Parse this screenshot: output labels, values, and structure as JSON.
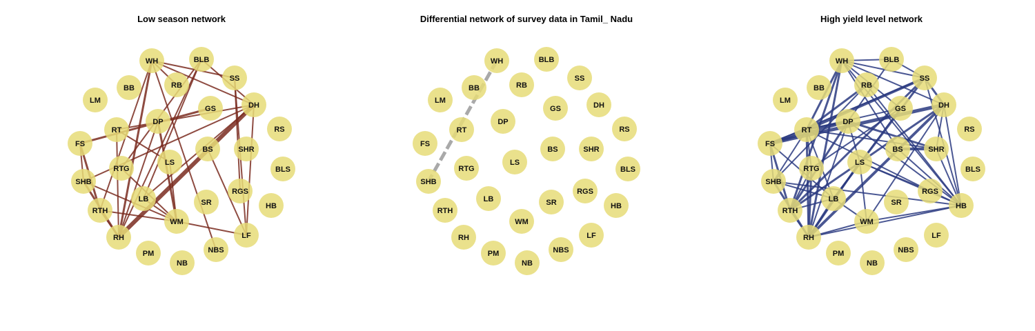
{
  "colors": {
    "background": "#ffffff",
    "node_fill": "#e6dc78",
    "low_season_edge": "#7a2c20",
    "differential_edge": "#9a9a9a",
    "high_yield_edge": "#2a3a80"
  },
  "nodes": [
    "WH",
    "BLB",
    "SS",
    "RB",
    "BB",
    "LM",
    "DH",
    "GS",
    "DP",
    "RT",
    "FS",
    "RS",
    "SHR",
    "BS",
    "LS",
    "RTG",
    "SHB",
    "BLS",
    "RGS",
    "LB",
    "HB",
    "SR",
    "RTH",
    "WM",
    "LF",
    "RH",
    "PM",
    "NBS",
    "NB"
  ],
  "panels": [
    {
      "id": "low-season",
      "title": "Low season network",
      "edge_color": "#7a2c20",
      "edges": [
        {
          "a": "WH",
          "b": "SS",
          "w": 2
        },
        {
          "a": "WH",
          "b": "DH",
          "w": 2
        },
        {
          "a": "WH",
          "b": "RB",
          "w": 2
        },
        {
          "a": "WH",
          "b": "NBS",
          "w": 2
        },
        {
          "a": "WH",
          "b": "RH",
          "w": 3
        },
        {
          "a": "WH",
          "b": "RTH",
          "w": 2
        },
        {
          "a": "BLB",
          "b": "DH",
          "w": 2
        },
        {
          "a": "BLB",
          "b": "RTG",
          "w": 2
        },
        {
          "a": "BLB",
          "b": "LB",
          "w": 2
        },
        {
          "a": "BLB",
          "b": "RH",
          "w": 2
        },
        {
          "a": "SS",
          "b": "LF",
          "w": 2
        },
        {
          "a": "SS",
          "b": "RGS",
          "w": 2
        },
        {
          "a": "DH",
          "b": "RT",
          "w": 2
        },
        {
          "a": "DH",
          "b": "RH",
          "w": 6
        },
        {
          "a": "DH",
          "b": "LB",
          "w": 2
        },
        {
          "a": "DH",
          "b": "LF",
          "w": 2
        },
        {
          "a": "DH",
          "b": "SHB",
          "w": 2
        },
        {
          "a": "GS",
          "b": "FS",
          "w": 3
        },
        {
          "a": "DP",
          "b": "RH",
          "w": 2
        },
        {
          "a": "DP",
          "b": "WM",
          "w": 3
        },
        {
          "a": "RT",
          "b": "LS",
          "w": 2
        },
        {
          "a": "FS",
          "b": "RTH",
          "w": 3
        },
        {
          "a": "FS",
          "b": "SHB",
          "w": 2
        },
        {
          "a": "SHB",
          "b": "RH",
          "w": 3
        },
        {
          "a": "SHB",
          "b": "WM",
          "w": 2
        },
        {
          "a": "RTG",
          "b": "WM",
          "w": 2
        },
        {
          "a": "RTH",
          "b": "RH",
          "w": 2
        },
        {
          "a": "RTH",
          "b": "WM",
          "w": 2
        },
        {
          "a": "LB",
          "b": "WM",
          "w": 2
        },
        {
          "a": "WM",
          "b": "LF",
          "w": 2
        },
        {
          "a": "LS",
          "b": "WM",
          "w": 2
        },
        {
          "a": "BS",
          "b": "LF",
          "w": 2
        },
        {
          "a": "RT",
          "b": "RH",
          "w": 2
        }
      ]
    },
    {
      "id": "differential",
      "title": "Differential network of survey data in Tamil_ Nadu",
      "edge_color": "#9a9a9a",
      "edges": [
        {
          "a": "WH",
          "b": "SHB",
          "w": 5,
          "dash": true
        }
      ]
    },
    {
      "id": "high-yield",
      "title": "High yield level network",
      "edge_color": "#2a3a80",
      "edges": [
        {
          "a": "WH",
          "b": "BLB",
          "w": 2
        },
        {
          "a": "WH",
          "b": "SS",
          "w": 2
        },
        {
          "a": "WH",
          "b": "DH",
          "w": 2
        },
        {
          "a": "WH",
          "b": "GS",
          "w": 2
        },
        {
          "a": "WH",
          "b": "RT",
          "w": 3
        },
        {
          "a": "WH",
          "b": "RTH",
          "w": 3
        },
        {
          "a": "WH",
          "b": "RH",
          "w": 3
        },
        {
          "a": "WH",
          "b": "BS",
          "w": 2
        },
        {
          "a": "WH",
          "b": "HB",
          "w": 2
        },
        {
          "a": "BLB",
          "b": "DP",
          "w": 2
        },
        {
          "a": "BLB",
          "b": "SS",
          "w": 2
        },
        {
          "a": "SS",
          "b": "RT",
          "w": 4
        },
        {
          "a": "SS",
          "b": "DH",
          "w": 3
        },
        {
          "a": "SS",
          "b": "LB",
          "w": 3
        },
        {
          "a": "SS",
          "b": "HB",
          "w": 2
        },
        {
          "a": "SS",
          "b": "FS",
          "w": 2
        },
        {
          "a": "RB",
          "b": "RT",
          "w": 3
        },
        {
          "a": "RB",
          "b": "HB",
          "w": 2
        },
        {
          "a": "RB",
          "b": "SHB",
          "w": 2
        },
        {
          "a": "DH",
          "b": "FS",
          "w": 5
        },
        {
          "a": "DH",
          "b": "RH",
          "w": 4
        },
        {
          "a": "DH",
          "b": "RTH",
          "w": 3
        },
        {
          "a": "DH",
          "b": "HB",
          "w": 2
        },
        {
          "a": "DH",
          "b": "WM",
          "w": 2
        },
        {
          "a": "GS",
          "b": "RT",
          "w": 2
        },
        {
          "a": "GS",
          "b": "RTG",
          "w": 2
        },
        {
          "a": "DP",
          "b": "FS",
          "w": 4
        },
        {
          "a": "DP",
          "b": "RTH",
          "w": 3
        },
        {
          "a": "DP",
          "b": "RH",
          "w": 2
        },
        {
          "a": "DP",
          "b": "SHR",
          "w": 3
        },
        {
          "a": "DP",
          "b": "HB",
          "w": 2
        },
        {
          "a": "DP",
          "b": "RT",
          "w": 3
        },
        {
          "a": "DP",
          "b": "LS",
          "w": 2
        },
        {
          "a": "RT",
          "b": "FS",
          "w": 4
        },
        {
          "a": "RT",
          "b": "SHR",
          "w": 2
        },
        {
          "a": "RT",
          "b": "RGS",
          "w": 2
        },
        {
          "a": "RT",
          "b": "RH",
          "w": 3
        },
        {
          "a": "RT",
          "b": "RTG",
          "w": 2
        },
        {
          "a": "RT",
          "b": "LB",
          "w": 2
        },
        {
          "a": "RT",
          "b": "SHB",
          "w": 2
        },
        {
          "a": "FS",
          "b": "RTH",
          "w": 3
        },
        {
          "a": "FS",
          "b": "LB",
          "w": 2
        },
        {
          "a": "FS",
          "b": "SHB",
          "w": 2
        },
        {
          "a": "BS",
          "b": "SHR",
          "w": 4
        },
        {
          "a": "BS",
          "b": "HB",
          "w": 2
        },
        {
          "a": "LS",
          "b": "RH",
          "w": 3
        },
        {
          "a": "LS",
          "b": "RGS",
          "w": 2
        },
        {
          "a": "LS",
          "b": "WM",
          "w": 2
        },
        {
          "a": "LS",
          "b": "HB",
          "w": 2
        },
        {
          "a": "RTG",
          "b": "RH",
          "w": 3
        },
        {
          "a": "RTG",
          "b": "RTH",
          "w": 2
        },
        {
          "a": "SHB",
          "b": "RH",
          "w": 3
        },
        {
          "a": "SHB",
          "b": "LB",
          "w": 2
        },
        {
          "a": "SHB",
          "b": "HB",
          "w": 2
        },
        {
          "a": "SHR",
          "b": "HB",
          "w": 2
        },
        {
          "a": "RGS",
          "b": "HB",
          "w": 2
        },
        {
          "a": "LB",
          "b": "RH",
          "w": 3
        },
        {
          "a": "LB",
          "b": "WM",
          "w": 2
        },
        {
          "a": "LB",
          "b": "RTH",
          "w": 2
        },
        {
          "a": "RTH",
          "b": "RH",
          "w": 2
        },
        {
          "a": "RH",
          "b": "WM",
          "w": 2
        },
        {
          "a": "RH",
          "b": "HB",
          "w": 2
        },
        {
          "a": "WM",
          "b": "HB",
          "w": 2
        },
        {
          "a": "DH",
          "b": "SHR",
          "w": 2
        },
        {
          "a": "SS",
          "b": "RTH",
          "w": 3
        },
        {
          "a": "GS",
          "b": "LB",
          "w": 2
        }
      ]
    }
  ]
}
